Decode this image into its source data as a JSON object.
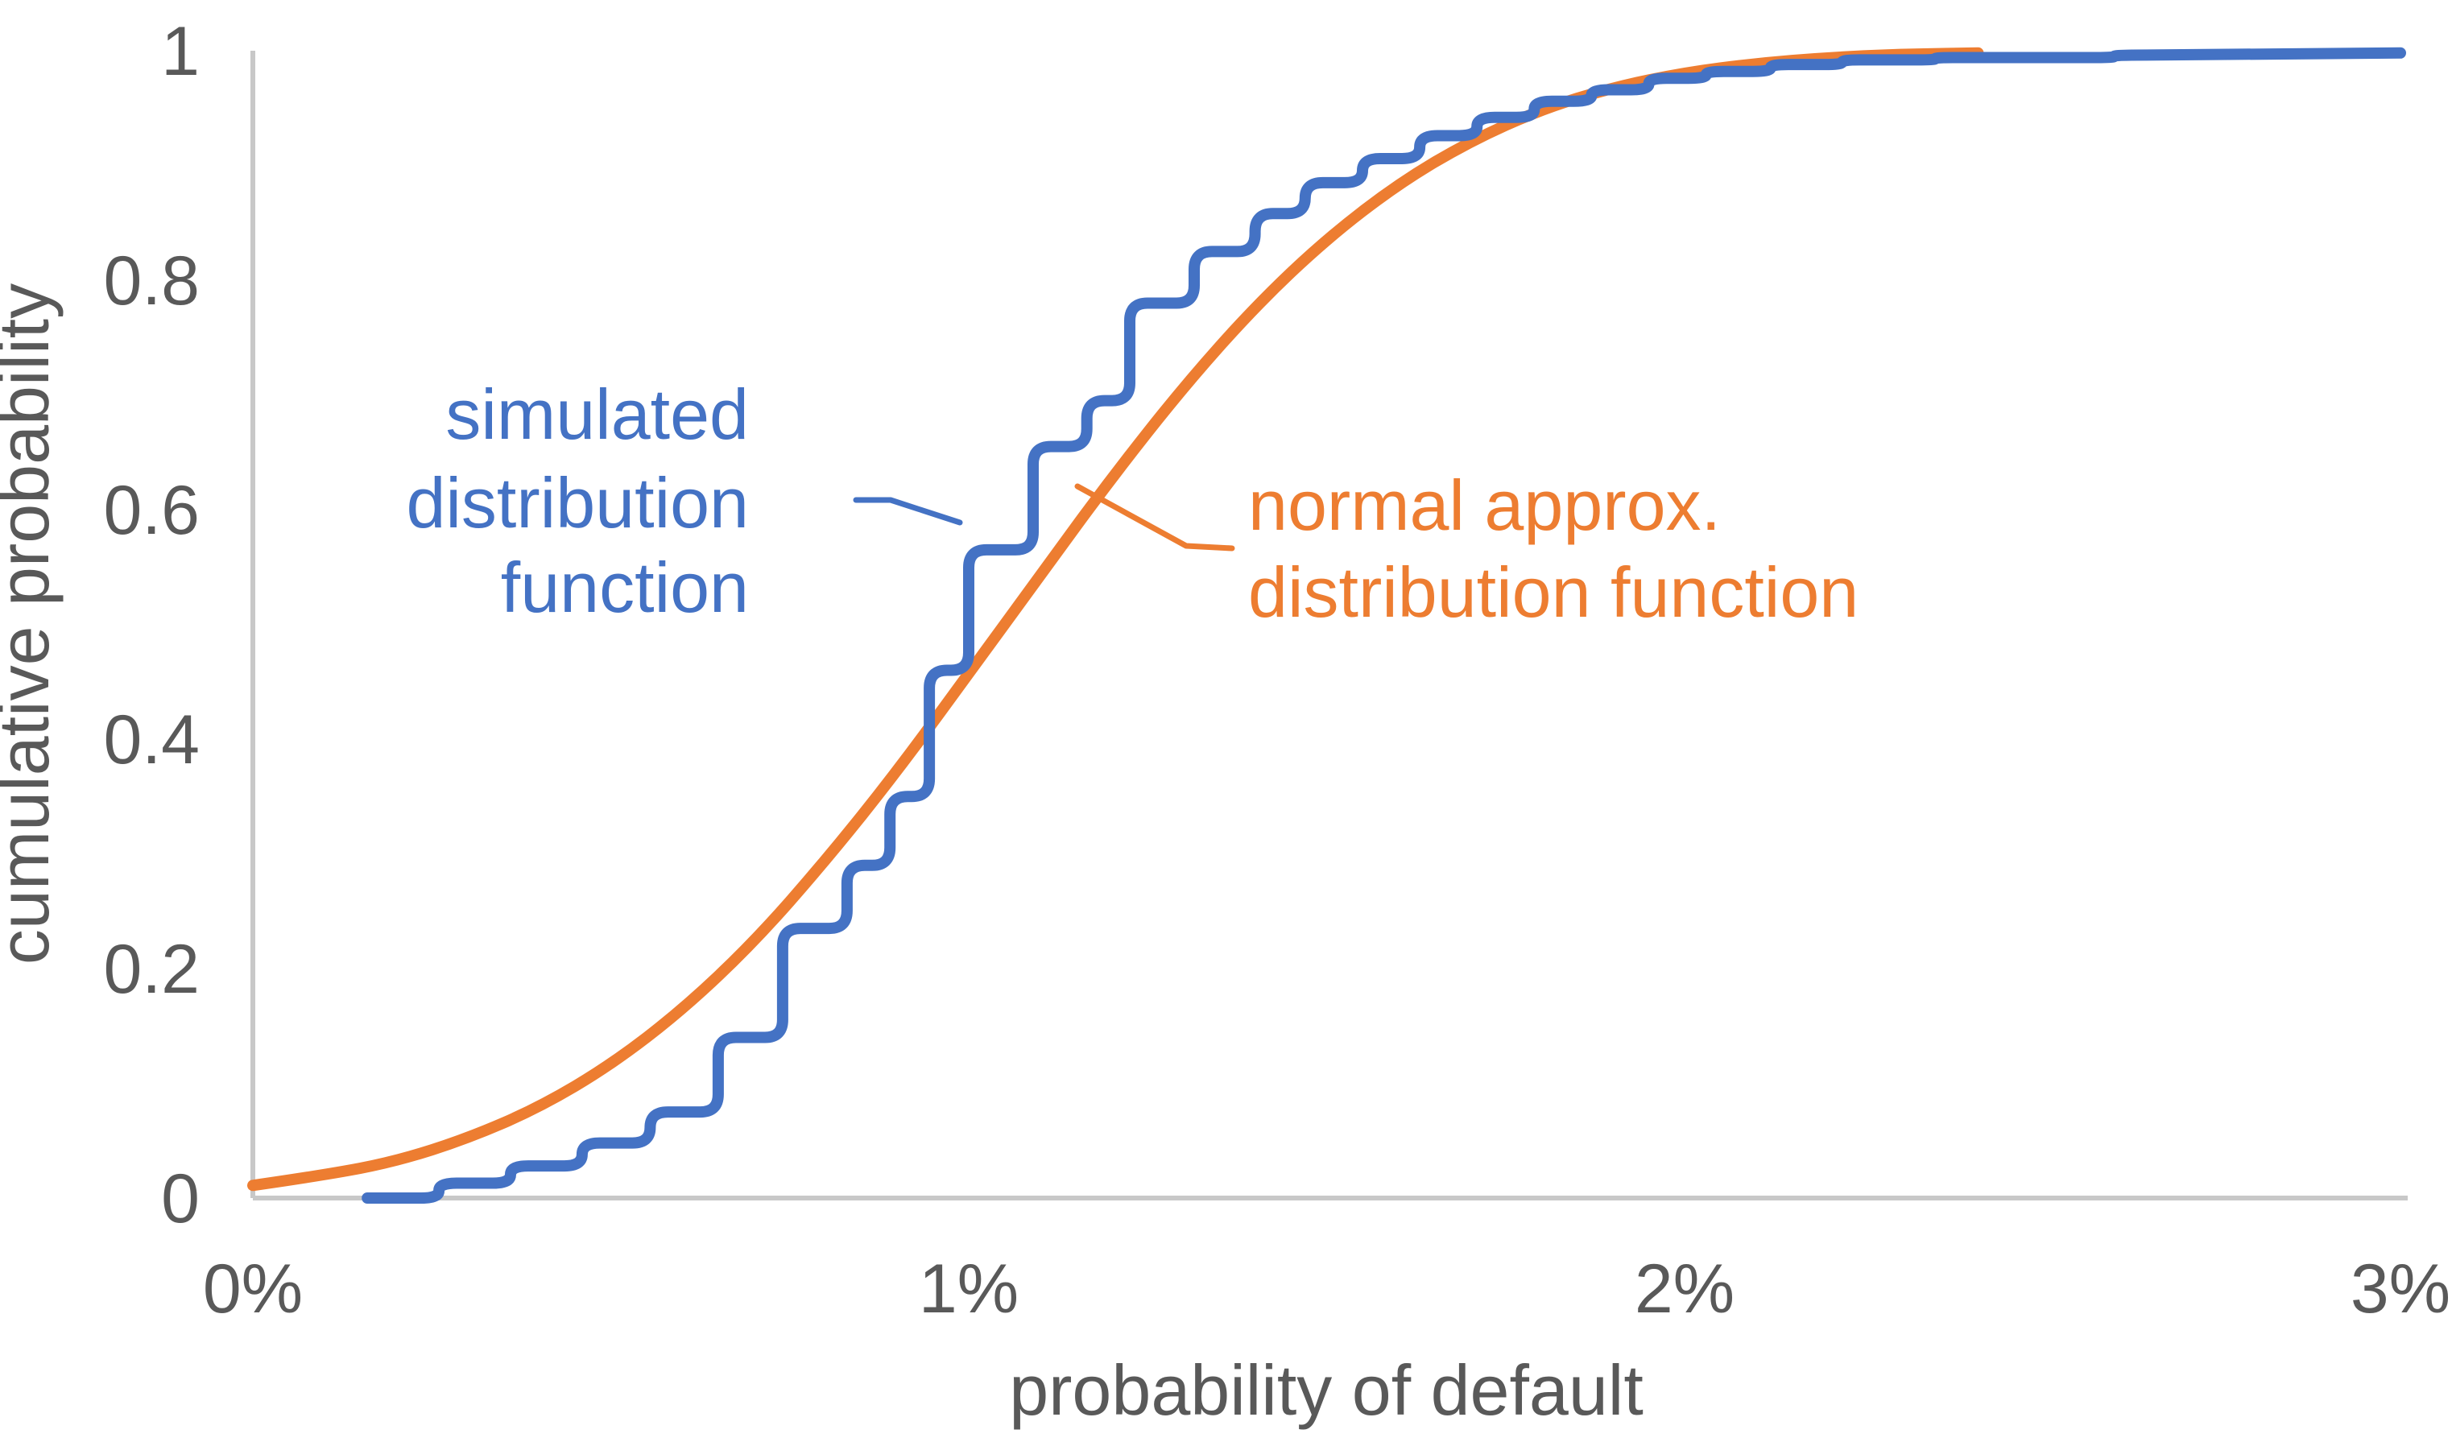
{
  "colors": {
    "simulated_blue": "#4472C4",
    "normal_orange": "#ED7D31",
    "axis_line": "#C8C8C8",
    "tick_text": "#595959"
  },
  "chart_data": {
    "type": "line",
    "title": "",
    "xlabel": "probability of default",
    "ylabel": "cumulative probability",
    "xlim_pct": [
      0,
      3
    ],
    "ylim": [
      0,
      1
    ],
    "grid": false,
    "legend": "inline-annotations",
    "x_ticks": [
      {
        "label": "0%",
        "value": 0
      },
      {
        "label": "1%",
        "value": 1
      },
      {
        "label": "2%",
        "value": 2
      },
      {
        "label": "3%",
        "value": 3
      }
    ],
    "y_ticks": [
      {
        "label": "0",
        "value": 0
      },
      {
        "label": "0.2",
        "value": 0.2
      },
      {
        "label": "0.4",
        "value": 0.4
      },
      {
        "label": "0.6",
        "value": 0.6
      },
      {
        "label": "0.8",
        "value": 0.8
      },
      {
        "label": "1",
        "value": 1
      }
    ],
    "series": [
      {
        "name": "simulated distribution function",
        "render": "step",
        "color": "#4472C4",
        "start": [
          0.16,
          0
        ],
        "steps": [
          [
            0.26,
            0.013
          ],
          [
            0.36,
            0.028
          ],
          [
            0.46,
            0.048
          ],
          [
            0.555,
            0.075
          ],
          [
            0.65,
            0.14
          ],
          [
            0.74,
            0.235
          ],
          [
            0.83,
            0.29
          ],
          [
            0.89,
            0.35
          ],
          [
            0.945,
            0.46
          ],
          [
            1.0,
            0.565
          ],
          [
            1.09,
            0.655
          ],
          [
            1.165,
            0.695
          ],
          [
            1.225,
            0.78
          ],
          [
            1.315,
            0.825
          ],
          [
            1.4,
            0.858
          ],
          [
            1.47,
            0.885
          ],
          [
            1.55,
            0.906
          ],
          [
            1.63,
            0.926
          ],
          [
            1.71,
            0.942
          ],
          [
            1.79,
            0.956
          ],
          [
            1.87,
            0.966
          ],
          [
            1.95,
            0.976
          ],
          [
            2.03,
            0.982
          ],
          [
            2.12,
            0.988
          ],
          [
            2.22,
            0.992
          ],
          [
            2.35,
            0.994
          ],
          [
            2.6,
            0.996
          ]
        ],
        "end": [
          3.0,
          0.998
        ]
      },
      {
        "name": "normal approx. distribution function",
        "render": "smooth",
        "color": "#ED7D31",
        "normal_params": {
          "mu_pct": 1.05,
          "sigma_pct": 0.46
        },
        "points": [
          [
            0,
            0.011
          ],
          [
            0.1,
            0.02
          ],
          [
            0.2,
            0.032
          ],
          [
            0.3,
            0.052
          ],
          [
            0.4,
            0.079
          ],
          [
            0.5,
            0.116
          ],
          [
            0.6,
            0.164
          ],
          [
            0.7,
            0.223
          ],
          [
            0.8,
            0.294
          ],
          [
            0.9,
            0.372
          ],
          [
            1.0,
            0.457
          ],
          [
            1.1,
            0.543
          ],
          [
            1.2,
            0.628
          ],
          [
            1.3,
            0.707
          ],
          [
            1.4,
            0.777
          ],
          [
            1.5,
            0.836
          ],
          [
            1.6,
            0.884
          ],
          [
            1.7,
            0.921
          ],
          [
            1.8,
            0.949
          ],
          [
            1.9,
            0.968
          ],
          [
            2.0,
            0.981
          ],
          [
            2.1,
            0.989
          ],
          [
            2.2,
            0.994
          ],
          [
            2.3,
            0.997
          ],
          [
            2.41,
            0.998
          ]
        ]
      }
    ],
    "annotations": [
      {
        "id": "simulated-label",
        "lines": [
          "simulated",
          "distribution",
          "function"
        ],
        "color": "#4472C4",
        "align": "right"
      },
      {
        "id": "normal-label",
        "lines": [
          "normal approx.",
          "distribution function"
        ],
        "color": "#ED7D31",
        "align": "left"
      }
    ]
  }
}
